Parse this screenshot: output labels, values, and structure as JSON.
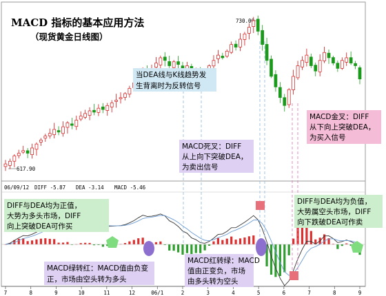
{
  "title": "MACD 指标的基本应用方法",
  "subtitle": "（现货黄金日线图）",
  "peak_label": "730.00",
  "low_label": "617.90",
  "indicator_label": {
    "date": "06/09/12",
    "diff": "DIFF -5.87",
    "dea": "DEA -3.14",
    "macd": "MACD -5.46"
  },
  "x_ticks": [
    "7",
    "8",
    "9",
    "10",
    "11",
    "12",
    "06/1",
    "2",
    "3",
    "4",
    "5",
    "6",
    "7",
    "8",
    "9"
  ],
  "annotations": {
    "divergence": [
      "当DEA线与K线趋势发",
      "生背离时为反转信号"
    ],
    "golden_cross": [
      "MACD金叉：DIFF",
      "从下向上突破DEA，",
      "为买入信号"
    ],
    "death_cross": [
      "MACD死叉：DIFF",
      "从上向下突破DEA，",
      "为卖出信号"
    ],
    "positive": [
      "DIFF与DEA均为正值，",
      "大势为多头市场，DIFF",
      "向上突破DEA可作买"
    ],
    "negative": [
      "DIFF与DEA均为负值，",
      "大势属空头市场，DIFF",
      "向下跌破DEA可作卖"
    ],
    "green_to_red": [
      "MACD绿转红：MACD值由负变",
      "正，市场由空头转为多头"
    ],
    "red_to_green": [
      "MACD红转绿：MACD",
      "值由正变负，市场",
      "由多头转为空头"
    ]
  },
  "colors": {
    "candle_up": "#d21414",
    "candle_down": "#1a9a1a",
    "hist_pos": "#dc3030",
    "hist_neg": "#2e9e2e",
    "diff_line": "#333333",
    "dea_line": "#6a9ad2",
    "pink_box": "#f4bcd6",
    "purple_box": "#ddd0f2",
    "green_box": "#cceecc",
    "cyan_box": "#cfe8f4",
    "green_marker": "#7fdc7f",
    "purple_marker": "#8d6fd0",
    "red_marker": "#e8707a"
  },
  "chart_data": {
    "type": "candlestick+macd",
    "title": "MACD 指标的基本应用方法",
    "subtitle": "（现货黄金日线图）",
    "x_tick_labels": [
      "7",
      "8",
      "9",
      "10",
      "11",
      "12",
      "06/1",
      "2",
      "3",
      "4",
      "5",
      "6",
      "7",
      "8",
      "9"
    ],
    "price_close_approx": [
      622,
      624,
      628,
      630,
      632,
      630,
      634,
      637,
      640,
      643,
      645,
      648,
      646,
      650,
      653,
      651,
      655,
      658,
      660,
      662,
      661,
      664,
      663,
      666,
      668,
      670,
      672,
      675,
      679,
      683,
      688,
      692,
      690,
      694,
      698,
      702,
      700,
      696,
      699,
      697,
      694,
      696,
      691,
      693,
      690,
      692,
      696,
      700,
      704,
      702,
      707,
      712,
      710,
      716,
      720,
      725,
      730,
      722,
      712,
      700,
      688,
      680,
      672,
      666,
      678,
      688,
      696,
      700,
      704,
      696,
      692,
      700,
      706,
      702,
      698,
      694,
      700,
      702,
      698,
      696,
      686
    ],
    "price_high": 730.0,
    "price_low": 617.9,
    "macd_indicator": {
      "date": "06/09/12",
      "DIFF": -5.87,
      "DEA": -3.14,
      "MACD": -5.46
    }
  }
}
